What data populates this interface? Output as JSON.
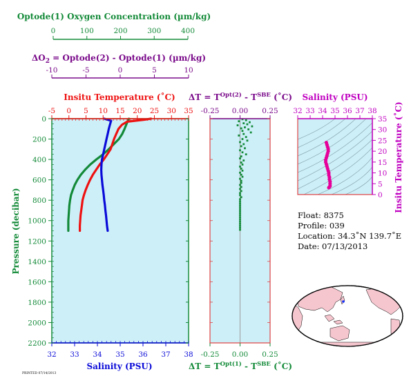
{
  "oxygen_axis": {
    "label": "Optode(1) Oxygen Concentration (µm/kg)",
    "ticks": [
      "0",
      "100",
      "200",
      "300",
      "400"
    ],
    "range": [
      0,
      400
    ]
  },
  "delta_o2_axis": {
    "label_prefix": "ΔO",
    "label_sub": "2",
    "label_rest": " = Optode(2) - Optode(1)     (µm/kg)",
    "ticks": [
      "-10",
      "-5",
      "0",
      "5",
      "10"
    ],
    "range": [
      -10,
      10
    ]
  },
  "colors": {
    "oxygen": "#138a38",
    "delta_o2": "#7a0a8a",
    "temperature": "#ee1111",
    "salinity": "#0a0ad8",
    "dt": "#138a38",
    "ts_salinity_axis": "#c000c0",
    "ts_dots": "#e6009a",
    "panel_bg": "#cdeff8",
    "frame": "#e04040",
    "land": "#f6c6cf"
  },
  "chart_data": [
    {
      "type": "line",
      "title": "Insitu Temperature (˚C)",
      "xlabel": "Salinity (PSU)",
      "ylabel": "Pressure (decibar)",
      "temp_ticks": [
        "-5",
        "0",
        "5",
        "10",
        "15",
        "20",
        "25",
        "30",
        "35"
      ],
      "temp_range": [
        -5,
        35
      ],
      "sal_ticks": [
        "32",
        "33",
        "34",
        "35",
        "36",
        "37",
        "38"
      ],
      "sal_range": [
        32,
        38
      ],
      "pressure_ticks": [
        "0",
        "200",
        "400",
        "600",
        "800",
        "1000",
        "1200",
        "1400",
        "1600",
        "1800",
        "2000",
        "2200"
      ],
      "pressure_range": [
        0,
        2200
      ],
      "series": [
        {
          "key": "temperature",
          "axis": "temperature",
          "points": [
            [
              24,
              0
            ],
            [
              22,
              10
            ],
            [
              17,
              30
            ],
            [
              15.5,
              60
            ],
            [
              14.5,
              100
            ],
            [
              13.7,
              160
            ],
            [
              13.2,
              200
            ],
            [
              12.7,
              250
            ],
            [
              12.2,
              300
            ],
            [
              11.2,
              350
            ],
            [
              10.2,
              400
            ],
            [
              9,
              450
            ],
            [
              8,
              500
            ],
            [
              7,
              550
            ],
            [
              6.2,
              600
            ],
            [
              5.5,
              650
            ],
            [
              4.9,
              700
            ],
            [
              4.4,
              750
            ],
            [
              4,
              800
            ],
            [
              3.8,
              850
            ],
            [
              3.6,
              900
            ],
            [
              3.4,
              950
            ],
            [
              3.3,
              1000
            ],
            [
              3.2,
              1050
            ],
            [
              3.2,
              1100
            ]
          ]
        },
        {
          "key": "salinity",
          "axis": "salinity",
          "points": [
            [
              34.3,
              0
            ],
            [
              34.6,
              20
            ],
            [
              34.55,
              60
            ],
            [
              34.5,
              100
            ],
            [
              34.45,
              150
            ],
            [
              34.4,
              200
            ],
            [
              34.35,
              250
            ],
            [
              34.3,
              300
            ],
            [
              34.25,
              350
            ],
            [
              34.2,
              400
            ],
            [
              34.18,
              450
            ],
            [
              34.17,
              500
            ],
            [
              34.18,
              550
            ],
            [
              34.2,
              600
            ],
            [
              34.22,
              650
            ],
            [
              34.25,
              700
            ],
            [
              34.28,
              750
            ],
            [
              34.3,
              800
            ],
            [
              34.33,
              850
            ],
            [
              34.35,
              900
            ],
            [
              34.38,
              950
            ],
            [
              34.4,
              1000
            ],
            [
              34.42,
              1050
            ],
            [
              34.45,
              1100
            ]
          ]
        },
        {
          "key": "oxygen",
          "axis": "oxygen",
          "points": [
            [
              225,
              0
            ],
            [
              222,
              20
            ],
            [
              218,
              50
            ],
            [
              212,
              100
            ],
            [
              205,
              150
            ],
            [
              195,
              200
            ],
            [
              180,
              250
            ],
            [
              165,
              300
            ],
            [
              148,
              350
            ],
            [
              128,
              400
            ],
            [
              110,
              450
            ],
            [
              95,
              500
            ],
            [
              82,
              550
            ],
            [
              72,
              600
            ],
            [
              64,
              650
            ],
            [
              58,
              700
            ],
            [
              53,
              750
            ],
            [
              50,
              800
            ],
            [
              48,
              850
            ],
            [
              47,
              900
            ],
            [
              46,
              950
            ],
            [
              45,
              1000
            ],
            [
              45,
              1050
            ],
            [
              45,
              1100
            ]
          ]
        }
      ]
    },
    {
      "type": "scatter",
      "title_text": "ΔT = T",
      "title_sup1": "Opt(2)",
      "title_mid": " - T",
      "title_sup2": "SBE",
      "title_unit": " (˚C)",
      "bottom_text": "ΔT = T",
      "bottom_sup1": "Opt(1)",
      "bottom_mid": " - T",
      "bottom_sup2": "SBE",
      "bottom_unit": " (˚C)",
      "dt_ticks": [
        "-0.25",
        "0.00",
        "0.25"
      ],
      "dt_range": [
        -0.25,
        0.25
      ],
      "series": [
        {
          "key": "dt",
          "points": [
            [
              0.02,
              5
            ],
            [
              0.05,
              15
            ],
            [
              -0.01,
              25
            ],
            [
              0.08,
              35
            ],
            [
              0.03,
              45
            ],
            [
              0.06,
              55
            ],
            [
              -0.02,
              65
            ],
            [
              0.1,
              75
            ],
            [
              0.04,
              85
            ],
            [
              0.01,
              95
            ],
            [
              0.07,
              105
            ],
            [
              0.02,
              120
            ],
            [
              0.09,
              135
            ],
            [
              0.03,
              150
            ],
            [
              -0.01,
              165
            ],
            [
              0.05,
              180
            ],
            [
              0.02,
              200
            ],
            [
              0.06,
              215
            ],
            [
              0.0,
              230
            ],
            [
              0.03,
              250
            ],
            [
              0.01,
              270
            ],
            [
              0.04,
              290
            ],
            [
              0.0,
              310
            ],
            [
              0.02,
              330
            ],
            [
              0.05,
              350
            ],
            [
              0.01,
              370
            ],
            [
              0.0,
              390
            ],
            [
              0.03,
              410
            ],
            [
              0.01,
              430
            ],
            [
              0.02,
              450
            ],
            [
              0.0,
              470
            ],
            [
              0.01,
              490
            ],
            [
              0.02,
              510
            ],
            [
              0.0,
              530
            ],
            [
              0.01,
              550
            ],
            [
              0.02,
              570
            ],
            [
              0.0,
              590
            ],
            [
              0.01,
              610
            ],
            [
              0.01,
              630
            ],
            [
              0.0,
              650
            ],
            [
              0.01,
              670
            ],
            [
              0.0,
              690
            ],
            [
              0.01,
              710
            ],
            [
              0.0,
              730
            ],
            [
              0.0,
              750
            ],
            [
              0.01,
              770
            ],
            [
              0.0,
              790
            ],
            [
              0.0,
              810
            ],
            [
              0.0,
              830
            ],
            [
              0.0,
              850
            ],
            [
              0.0,
              870
            ],
            [
              0.0,
              890
            ],
            [
              0.0,
              910
            ],
            [
              0.0,
              930
            ],
            [
              0.0,
              950
            ],
            [
              0.0,
              970
            ],
            [
              0.0,
              990
            ],
            [
              0.0,
              1010
            ],
            [
              0.0,
              1030
            ],
            [
              0.0,
              1050
            ],
            [
              0.0,
              1070
            ],
            [
              0.0,
              1090
            ]
          ]
        }
      ]
    },
    {
      "type": "scatter",
      "title": "Salinity (PSU)",
      "ylabel": "Insitu Temperature (˚C)",
      "sal_ticks": [
        "32",
        "33",
        "34",
        "35",
        "36",
        "37",
        "38"
      ],
      "sal_range": [
        32,
        38
      ],
      "temp_ticks": [
        "0",
        "5",
        "10",
        "15",
        "20",
        "25",
        "30",
        "35"
      ],
      "temp_range": [
        0,
        35
      ],
      "points": [
        [
          34.3,
          24
        ],
        [
          34.35,
          23
        ],
        [
          34.4,
          22
        ],
        [
          34.45,
          21
        ],
        [
          34.45,
          20
        ],
        [
          34.4,
          19
        ],
        [
          34.35,
          18
        ],
        [
          34.3,
          17
        ],
        [
          34.25,
          16
        ],
        [
          34.25,
          15
        ],
        [
          34.3,
          14
        ],
        [
          34.35,
          13
        ],
        [
          34.4,
          12
        ],
        [
          34.45,
          11
        ],
        [
          34.5,
          10
        ],
        [
          34.5,
          9
        ],
        [
          34.55,
          8
        ],
        [
          34.55,
          7
        ],
        [
          34.6,
          6
        ],
        [
          34.6,
          5
        ],
        [
          34.6,
          4
        ],
        [
          34.55,
          3.5
        ],
        [
          34.5,
          3.2
        ]
      ]
    }
  ],
  "info": {
    "float_line": "Float:  8375",
    "profile_line": "Profile:  039",
    "location_line": "Location:  34.3˚N  139.7˚E",
    "date_line": "Date:  07/13/2013"
  },
  "footer_stamp": "PRINTED 07/14/2013"
}
